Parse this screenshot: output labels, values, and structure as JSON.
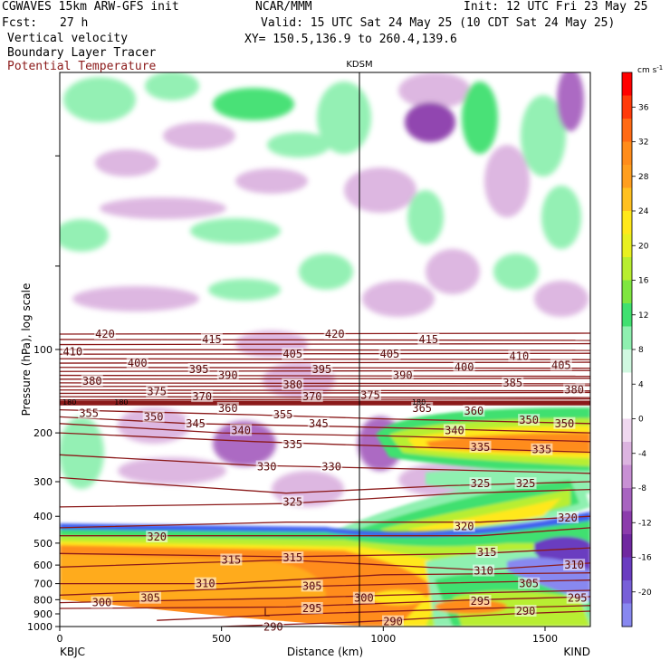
{
  "header": {
    "model": "CGWAVES 15km ARW-GFS init",
    "org": "NCAR/MMM",
    "init": "Init: 12 UTC Fri 23 May 25",
    "fcst_label": "Fcst:",
    "fcst_value": "27 h",
    "valid": "Valid: 15 UTC Sat 24 May 25 (10 CDT Sat 24 May 25)",
    "field1": "Vertical velocity",
    "field2": "Boundary Layer Tracer",
    "field3": "Potential Temperature",
    "xy": "XY= 150.5,136.9 to 260.4,139.6"
  },
  "chart_data": {
    "type": "heatmap",
    "title": "",
    "xlabel": "Distance (km)",
    "ylabel": "Pressure (hPa), log scale",
    "xlim": [
      0,
      1640
    ],
    "ylim": [
      1000,
      10
    ],
    "x_ticks": [
      0,
      500,
      1000,
      1500
    ],
    "y_ticks": [
      100,
      200,
      300,
      400,
      500,
      600,
      700,
      800,
      900,
      1000
    ],
    "left_station": "KBJC",
    "right_station": "KIND",
    "mid_station": "KDSM",
    "mid_station_km": 940,
    "colorbar": {
      "unit": "cm s",
      "unit_sup": "-1",
      "ticks": [
        36,
        32,
        28,
        24,
        20,
        16,
        12,
        8,
        4,
        0,
        -4,
        -8,
        -12,
        -16,
        -20
      ],
      "colors": [
        "#ff0000",
        "#ff3a0a",
        "#ff6a14",
        "#ff8c1a",
        "#ff9e1e",
        "#ffc020",
        "#ffe81a",
        "#e8f020",
        "#b8ee30",
        "#7fe640",
        "#40e070",
        "#8ff0b0",
        "#d0f8e0",
        "#ffffff",
        "#ffffff",
        "#f0d8f0",
        "#dcb4e0",
        "#c890d4",
        "#a864c0",
        "#8c3cac",
        "#7028a0",
        "#6a3cc0",
        "#7860d8",
        "#8888f0"
      ]
    },
    "theta_labels": [
      {
        "v": "420",
        "x": 140,
        "p": 88
      },
      {
        "v": "415",
        "x": 470,
        "p": 92
      },
      {
        "v": "420",
        "x": 850,
        "p": 88
      },
      {
        "v": "415",
        "x": 1140,
        "p": 92
      },
      {
        "v": "410",
        "x": 40,
        "p": 102
      },
      {
        "v": "405",
        "x": 720,
        "p": 104
      },
      {
        "v": "405",
        "x": 1020,
        "p": 104
      },
      {
        "v": "410",
        "x": 1420,
        "p": 106
      },
      {
        "v": "400",
        "x": 240,
        "p": 112
      },
      {
        "v": "395",
        "x": 430,
        "p": 118
      },
      {
        "v": "395",
        "x": 810,
        "p": 118
      },
      {
        "v": "400",
        "x": 1250,
        "p": 116
      },
      {
        "v": "405",
        "x": 1550,
        "p": 114
      },
      {
        "v": "390",
        "x": 520,
        "p": 124
      },
      {
        "v": "390",
        "x": 1060,
        "p": 124
      },
      {
        "v": "380",
        "x": 100,
        "p": 130
      },
      {
        "v": "380",
        "x": 720,
        "p": 134
      },
      {
        "v": "385",
        "x": 1400,
        "p": 132
      },
      {
        "v": "380",
        "x": 1590,
        "p": 140
      },
      {
        "v": "375",
        "x": 300,
        "p": 142
      },
      {
        "v": "370",
        "x": 440,
        "p": 148
      },
      {
        "v": "370",
        "x": 780,
        "p": 148
      },
      {
        "v": "375",
        "x": 960,
        "p": 146
      },
      {
        "v": "360",
        "x": 520,
        "p": 163
      },
      {
        "v": "365",
        "x": 1120,
        "p": 163
      },
      {
        "v": "360",
        "x": 1280,
        "p": 167
      },
      {
        "v": "355",
        "x": 90,
        "p": 170
      },
      {
        "v": "350",
        "x": 290,
        "p": 175
      },
      {
        "v": "355",
        "x": 690,
        "p": 172
      },
      {
        "v": "350",
        "x": 1450,
        "p": 180
      },
      {
        "v": "350",
        "x": 1560,
        "p": 185
      },
      {
        "v": "345",
        "x": 420,
        "p": 185
      },
      {
        "v": "345",
        "x": 800,
        "p": 185
      },
      {
        "v": "340",
        "x": 560,
        "p": 196
      },
      {
        "v": "340",
        "x": 1220,
        "p": 196
      },
      {
        "v": "335",
        "x": 720,
        "p": 220
      },
      {
        "v": "335",
        "x": 1300,
        "p": 225
      },
      {
        "v": "335",
        "x": 1490,
        "p": 230
      },
      {
        "v": "330",
        "x": 640,
        "p": 265
      },
      {
        "v": "330",
        "x": 840,
        "p": 265
      },
      {
        "v": "325",
        "x": 720,
        "p": 355
      },
      {
        "v": "325",
        "x": 1300,
        "p": 305
      },
      {
        "v": "325",
        "x": 1440,
        "p": 305
      },
      {
        "v": "320",
        "x": 300,
        "p": 475
      },
      {
        "v": "320",
        "x": 1250,
        "p": 435
      },
      {
        "v": "320",
        "x": 1570,
        "p": 405
      },
      {
        "v": "315",
        "x": 530,
        "p": 575
      },
      {
        "v": "315",
        "x": 720,
        "p": 565
      },
      {
        "v": "315",
        "x": 1320,
        "p": 540
      },
      {
        "v": "310",
        "x": 1310,
        "p": 630
      },
      {
        "v": "310",
        "x": 1590,
        "p": 600
      },
      {
        "v": "310",
        "x": 450,
        "p": 700
      },
      {
        "v": "305",
        "x": 280,
        "p": 790
      },
      {
        "v": "305",
        "x": 780,
        "p": 715
      },
      {
        "v": "305",
        "x": 1450,
        "p": 700
      },
      {
        "v": "300",
        "x": 130,
        "p": 820
      },
      {
        "v": "300",
        "x": 940,
        "p": 790
      },
      {
        "v": "295",
        "x": 780,
        "p": 860
      },
      {
        "v": "295",
        "x": 1300,
        "p": 810
      },
      {
        "v": "295",
        "x": 1600,
        "p": 790
      },
      {
        "v": "290",
        "x": 660,
        "p": 1005
      },
      {
        "v": "290",
        "x": 1030,
        "p": 960
      },
      {
        "v": "290",
        "x": 1440,
        "p": 880
      }
    ],
    "low_marker": {
      "label": "L",
      "x": 640,
      "p": 890
    },
    "tropopause_labels": [
      {
        "v": "180",
        "x": 30,
        "p": 155
      },
      {
        "v": "180",
        "x": 190,
        "p": 155
      },
      {
        "v": "180",
        "x": 1110,
        "p": 155
      }
    ]
  }
}
